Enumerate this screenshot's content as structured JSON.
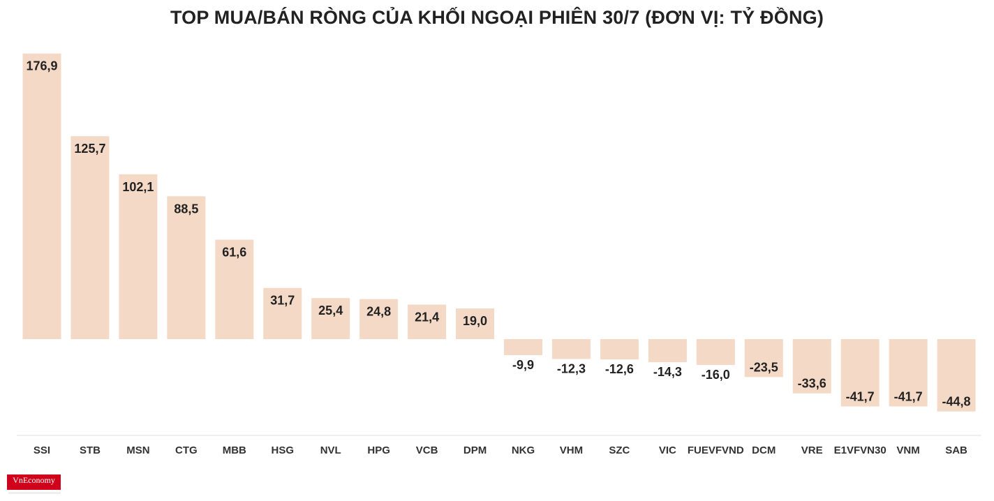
{
  "chart_data": {
    "type": "bar",
    "title": "TOP MUA/BÁN RÒNG CỦA KHỐI NGOẠI PHIÊN 30/7 (ĐƠN VỊ: TỶ ĐỒNG)",
    "xlabel": "",
    "ylabel": "",
    "categories": [
      "SSI",
      "STB",
      "MSN",
      "CTG",
      "MBB",
      "HSG",
      "NVL",
      "HPG",
      "VCB",
      "DPM",
      "NKG",
      "VHM",
      "SZC",
      "VIC",
      "FUEVFVND",
      "DCM",
      "VRE",
      "E1VFVN30",
      "VNM",
      "SAB"
    ],
    "values": [
      176.9,
      125.7,
      102.1,
      88.5,
      61.6,
      31.7,
      25.4,
      24.8,
      21.4,
      19.0,
      -9.9,
      -12.3,
      -12.6,
      -14.3,
      -16.0,
      -23.5,
      -33.6,
      -41.7,
      -41.7,
      -44.8
    ],
    "value_labels": [
      "176,9",
      "125,7",
      "102,1",
      "88,5",
      "61,6",
      "31,7",
      "25,4",
      "24,8",
      "21,4",
      "19,0",
      "-9,9",
      "-12,3",
      "-12,6",
      "-14,3",
      "-16,0",
      "-23,5",
      "-33,6",
      "-41,7",
      "-41,7",
      "-44,8"
    ],
    "grid": false,
    "legend": "none",
    "bar_color": "#f4d9c6"
  },
  "brand": {
    "logo_text": "VnEconomy",
    "logo_color": "#d0021b"
  }
}
